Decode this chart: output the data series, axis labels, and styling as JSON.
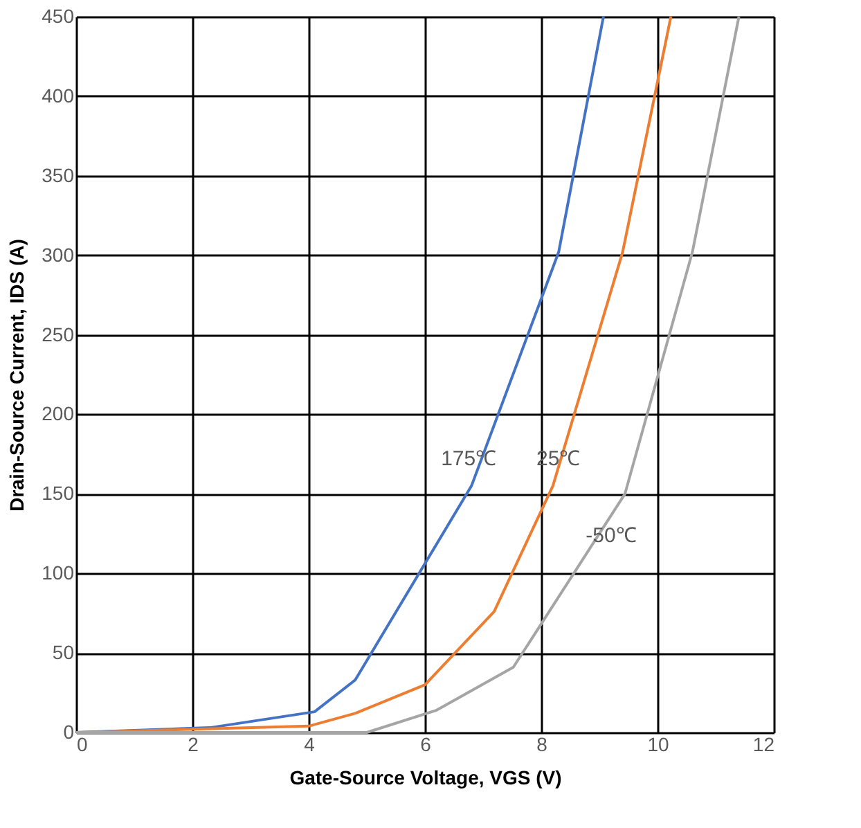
{
  "chart_data": {
    "type": "line",
    "xlabel": "Gate-Source Voltage, VGS (V)",
    "ylabel": "Drain-Source Current, IDS (A)",
    "xlim": [
      0,
      12
    ],
    "ylim": [
      0,
      450
    ],
    "xticks": [
      0,
      2,
      4,
      6,
      8,
      10,
      12
    ],
    "yticks": [
      0,
      50,
      100,
      150,
      200,
      250,
      300,
      350,
      400,
      450
    ],
    "grid": true,
    "line_style": "solid",
    "marker": "none",
    "series": [
      {
        "name": "175℃",
        "color": "#4472c4",
        "x": [
          0,
          2.3,
          4.1,
          4.8,
          6.8,
          8.3,
          9.07
        ],
        "values": [
          0,
          3,
          13,
          33,
          155,
          302,
          450
        ]
      },
      {
        "name": "25℃",
        "color": "#ed7d31",
        "x": [
          0,
          4,
          4.8,
          6,
          7.19,
          8.2,
          9.4,
          10.23
        ],
        "values": [
          0,
          4,
          12,
          30,
          76,
          155,
          302,
          450
        ]
      },
      {
        "name": "-50℃",
        "color": "#a5a5a5",
        "x": [
          0,
          5,
          6.2,
          7.52,
          9.44,
          10.6,
          11.4
        ],
        "values": [
          0,
          0,
          14,
          41,
          150,
          302,
          450
        ]
      }
    ]
  }
}
